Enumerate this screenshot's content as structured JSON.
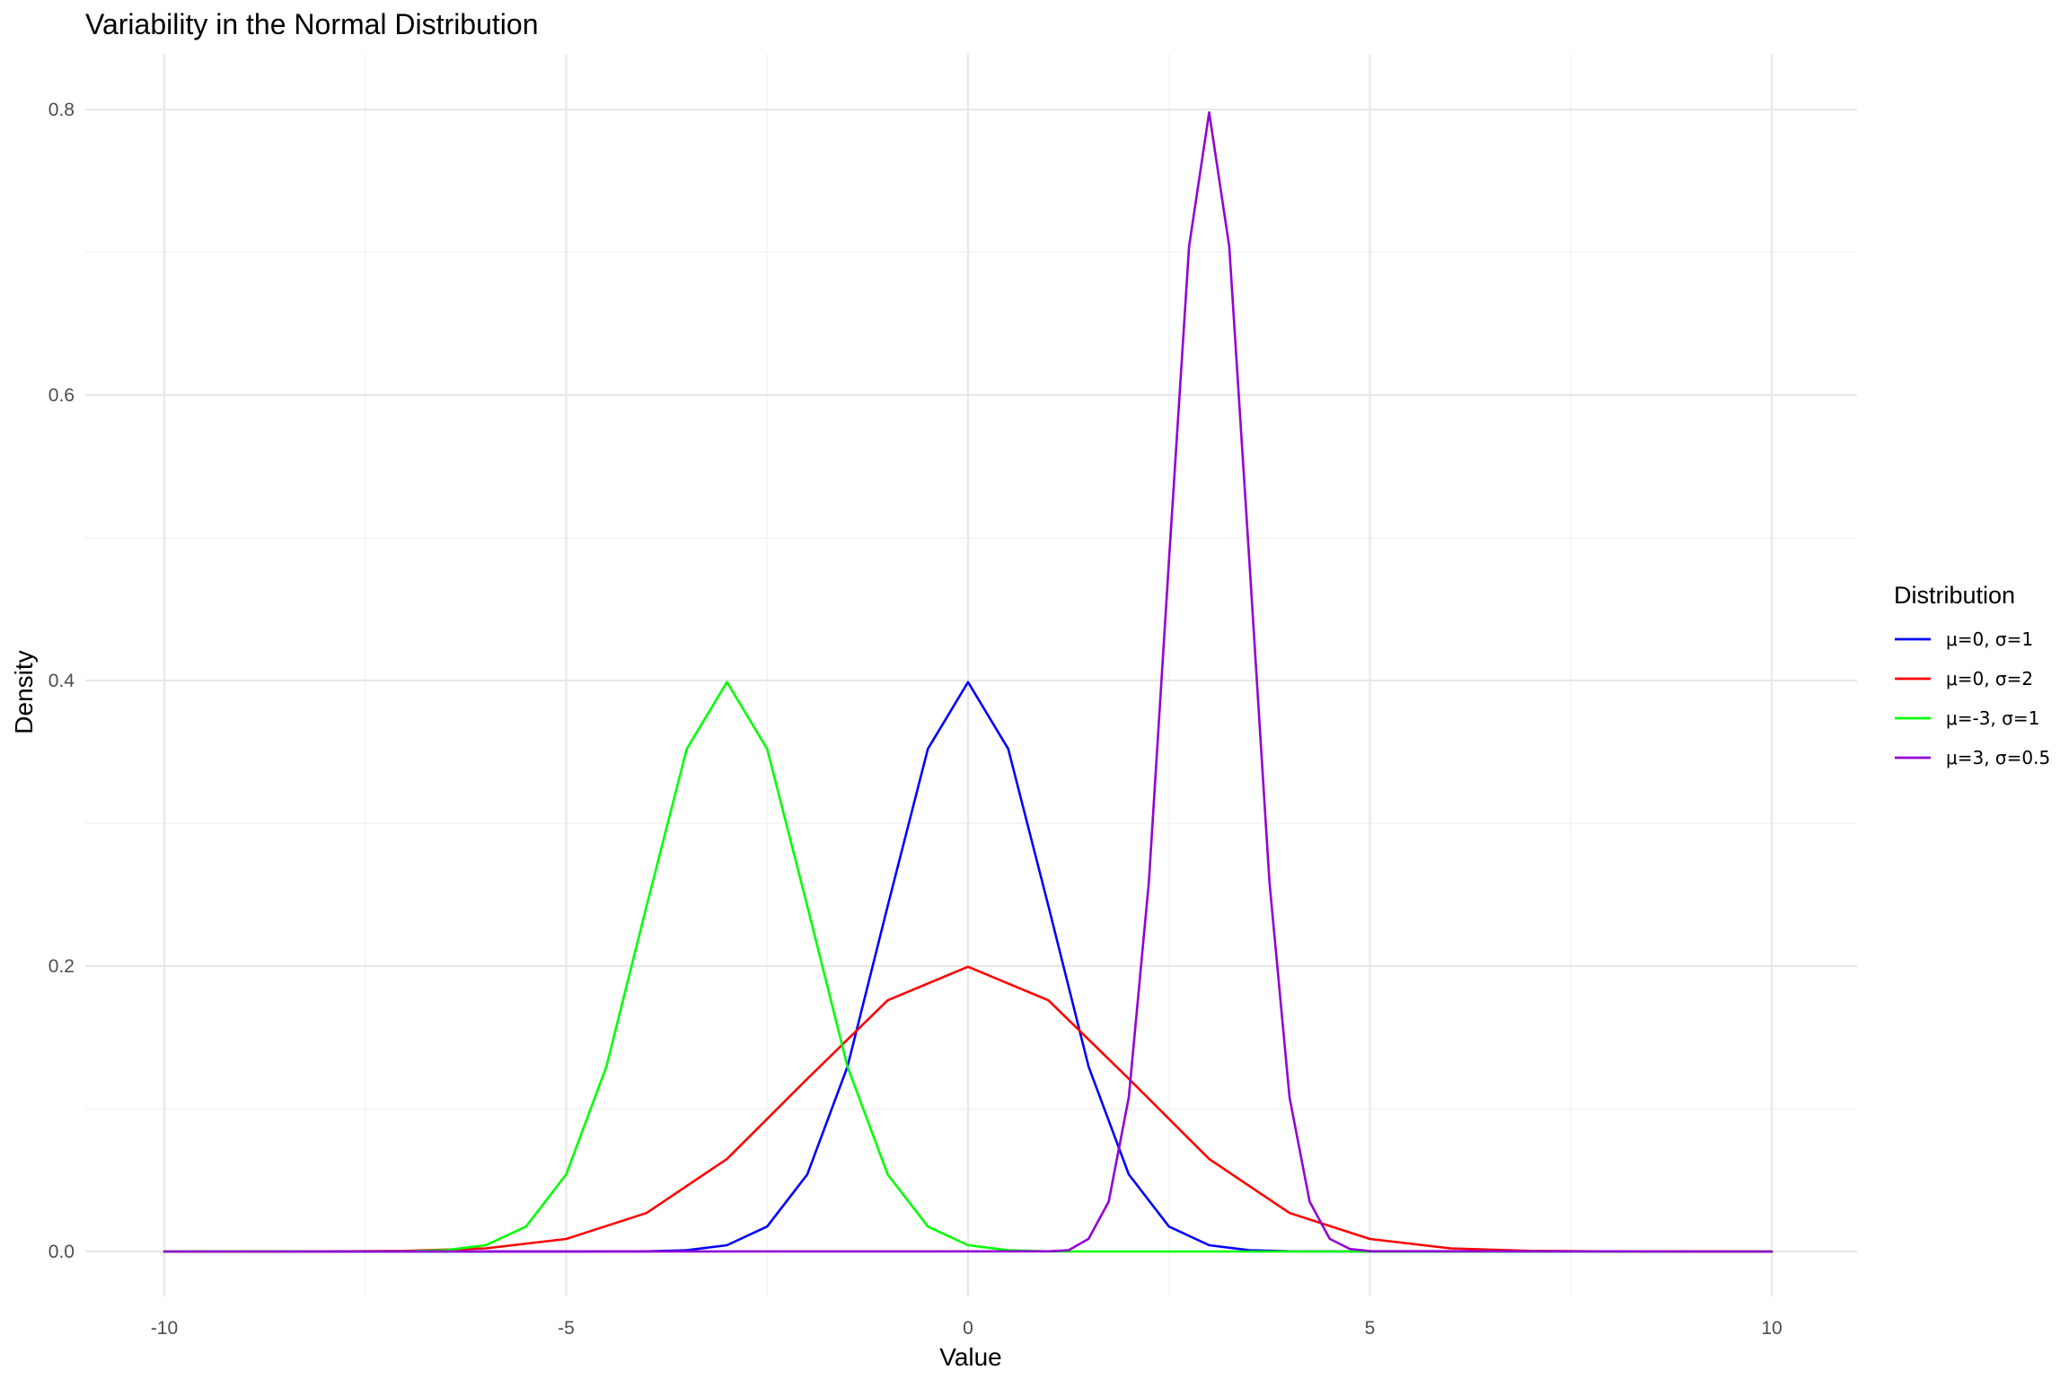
{
  "chart_data": {
    "type": "line",
    "title": "Variability in the Normal Distribution",
    "xlabel": "Value",
    "ylabel": "Density",
    "xlim": [
      -10,
      10
    ],
    "ylim": [
      0,
      0.8
    ],
    "x_ticks": [
      -10,
      -5,
      0,
      5,
      10
    ],
    "x_tick_labels": [
      "-10",
      "-5",
      "0",
      "5",
      "10"
    ],
    "y_ticks": [
      0,
      0.2,
      0.4,
      0.6,
      0.8
    ],
    "y_tick_labels": [
      "0.0",
      "0.2",
      "0.4",
      "0.6",
      "0.8"
    ],
    "grid": true,
    "legend": {
      "title": "Distribution",
      "position": "right"
    },
    "series": [
      {
        "name": "μ=0, σ=1",
        "color": "#0000ff",
        "x": [
          -10,
          -6,
          -5,
          -4,
          -3.5,
          -3,
          -2.5,
          -2,
          -1.5,
          -1,
          -0.5,
          0,
          0.5,
          1,
          1.5,
          2,
          2.5,
          3,
          3.5,
          4,
          5,
          6,
          10
        ],
        "y": [
          0,
          0,
          0,
          0.0001,
          0.0009,
          0.0044,
          0.0175,
          0.054,
          0.1295,
          0.242,
          0.3521,
          0.3989,
          0.3521,
          0.242,
          0.1295,
          0.054,
          0.0175,
          0.0044,
          0.0009,
          0.0001,
          0,
          0,
          0
        ]
      },
      {
        "name": "μ=0, σ=2",
        "color": "#ff0000",
        "x": [
          -10,
          -8,
          -7,
          -6,
          -5,
          -4,
          -3,
          -2,
          -1,
          0,
          1,
          2,
          3,
          4,
          5,
          6,
          7,
          8,
          10
        ],
        "y": [
          0,
          0.0001,
          0.0004,
          0.0022,
          0.0088,
          0.027,
          0.0648,
          0.121,
          0.176,
          0.1995,
          0.176,
          0.121,
          0.0648,
          0.027,
          0.0088,
          0.0022,
          0.0004,
          0.0001,
          0
        ]
      },
      {
        "name": "μ=-3, σ=1",
        "color": "#00ff00",
        "x": [
          -10,
          -7,
          -6.5,
          -6,
          -5.5,
          -5,
          -4.5,
          -4,
          -3.5,
          -3,
          -2.5,
          -2,
          -1.5,
          -1,
          -0.5,
          0,
          0.5,
          1,
          1.5,
          10
        ],
        "y": [
          0,
          0.0001,
          0.0009,
          0.0044,
          0.0175,
          0.054,
          0.1295,
          0.242,
          0.3521,
          0.3989,
          0.3521,
          0.242,
          0.1295,
          0.054,
          0.0175,
          0.0044,
          0.0009,
          0.0001,
          0,
          0
        ]
      },
      {
        "name": "μ=3, σ=0.5",
        "color": "#9400d3",
        "x": [
          -10,
          1,
          1.25,
          1.5,
          1.75,
          2,
          2.25,
          2.5,
          2.75,
          3,
          3.25,
          3.5,
          3.75,
          4,
          4.25,
          4.5,
          4.75,
          5,
          10
        ],
        "y": [
          0,
          0.0001,
          0.0009,
          0.0089,
          0.035,
          0.108,
          0.259,
          0.484,
          0.704,
          0.798,
          0.704,
          0.484,
          0.259,
          0.108,
          0.035,
          0.0089,
          0.0018,
          0.0003,
          0
        ]
      }
    ]
  }
}
